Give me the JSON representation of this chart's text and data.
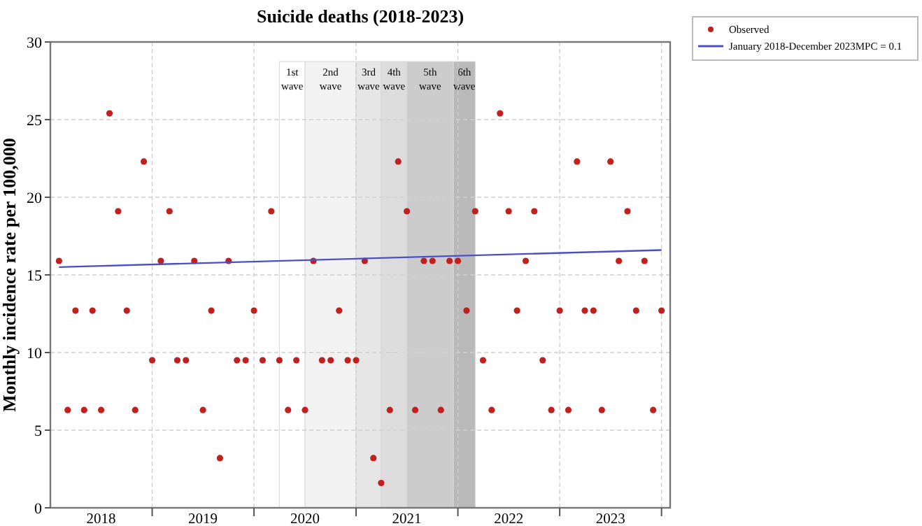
{
  "chart_data": {
    "type": "scatter",
    "title": "Suicide deaths (2018-2023)",
    "ylabel": "Monthly incidence rate per 100,000",
    "x": [
      "2018-01",
      "2018-02",
      "2018-03",
      "2018-04",
      "2018-05",
      "2018-06",
      "2018-07",
      "2018-08",
      "2018-09",
      "2018-10",
      "2018-11",
      "2018-12",
      "2019-01",
      "2019-02",
      "2019-03",
      "2019-04",
      "2019-05",
      "2019-06",
      "2019-07",
      "2019-08",
      "2019-09",
      "2019-10",
      "2019-11",
      "2019-12",
      "2020-01",
      "2020-02",
      "2020-03",
      "2020-04",
      "2020-05",
      "2020-06",
      "2020-07",
      "2020-08",
      "2020-09",
      "2020-10",
      "2020-11",
      "2020-12",
      "2021-01",
      "2021-02",
      "2021-03",
      "2021-04",
      "2021-05",
      "2021-06",
      "2021-07",
      "2021-08",
      "2021-09",
      "2021-10",
      "2021-11",
      "2021-12",
      "2022-01",
      "2022-02",
      "2022-03",
      "2022-04",
      "2022-05",
      "2022-06",
      "2022-07",
      "2022-08",
      "2022-09",
      "2022-10",
      "2022-11",
      "2022-12",
      "2023-01",
      "2023-02",
      "2023-03",
      "2023-04",
      "2023-05",
      "2023-06",
      "2023-07",
      "2023-08",
      "2023-09",
      "2023-10",
      "2023-11",
      "2023-12"
    ],
    "series": [
      {
        "name": "Observed",
        "color": "#c0201e",
        "marker": "circle",
        "values": [
          15.9,
          6.3,
          12.7,
          6.3,
          12.7,
          6.3,
          25.4,
          19.1,
          12.7,
          6.3,
          22.3,
          9.5,
          15.9,
          19.1,
          9.5,
          9.5,
          15.9,
          6.3,
          12.7,
          3.2,
          15.9,
          9.5,
          9.5,
          12.7,
          9.5,
          19.1,
          9.5,
          6.3,
          9.5,
          6.3,
          15.9,
          9.5,
          9.5,
          12.7,
          9.5,
          9.5,
          15.9,
          3.2,
          1.6,
          6.3,
          22.3,
          19.1,
          6.3,
          15.9,
          15.9,
          6.3,
          15.9,
          15.9,
          12.7,
          19.1,
          9.5,
          6.3,
          25.4,
          19.1,
          12.7,
          15.9,
          19.1,
          9.5,
          6.3,
          12.7,
          6.3,
          22.3,
          12.7,
          12.7,
          6.3,
          22.3,
          15.9,
          19.1,
          12.7,
          15.9,
          6.3,
          12.7
        ]
      },
      {
        "name": "January 2018-December 2023MPC = 0.1",
        "type": "line",
        "color": "#4b4fc8",
        "marker": "none",
        "line_style": "solid",
        "x": [
          "2018-01",
          "2023-12"
        ],
        "values": [
          15.5,
          16.6
        ]
      }
    ],
    "xlim": [
      "2017-12",
      "2024-01"
    ],
    "xticks": [
      {
        "value": "2018-06",
        "label": "2018"
      },
      {
        "value": "2018-12",
        "label": null
      },
      {
        "value": "2019-06",
        "label": "2019"
      },
      {
        "value": "2019-12",
        "label": null
      },
      {
        "value": "2020-06",
        "label": "2020"
      },
      {
        "value": "2020-12",
        "label": null
      },
      {
        "value": "2021-06",
        "label": "2021"
      },
      {
        "value": "2021-12",
        "label": null
      },
      {
        "value": "2022-06",
        "label": "2022"
      },
      {
        "value": "2022-12",
        "label": null
      },
      {
        "value": "2023-06",
        "label": "2023"
      },
      {
        "value": "2023-12",
        "label": null
      }
    ],
    "ylim": [
      0,
      30
    ],
    "yticks": [
      0,
      5,
      10,
      15,
      20,
      25,
      30
    ],
    "grid": true,
    "legend": "top right",
    "bands": [
      {
        "axis": "x",
        "from": "2020-03",
        "to": "2020-06",
        "label": "1st wave",
        "color": "#ffffff"
      },
      {
        "axis": "x",
        "from": "2020-06",
        "to": "2020-12",
        "label": "2nd wave",
        "color": "#f2f2f2"
      },
      {
        "axis": "x",
        "from": "2020-12",
        "to": "2021-03",
        "label": "3rd wave",
        "color": "#e6e6e6"
      },
      {
        "axis": "x",
        "from": "2021-03",
        "to": "2021-06",
        "label": "4th wave",
        "color": "#dcdcdc"
      },
      {
        "axis": "x",
        "from": "2021-06",
        "to": "2021-11-15",
        "label": "5th wave",
        "color": "#cccccc"
      },
      {
        "axis": "x",
        "from": "2021-11-15",
        "to": "2022-02",
        "label": "6th wave",
        "color": "#b9b9b9"
      }
    ]
  }
}
